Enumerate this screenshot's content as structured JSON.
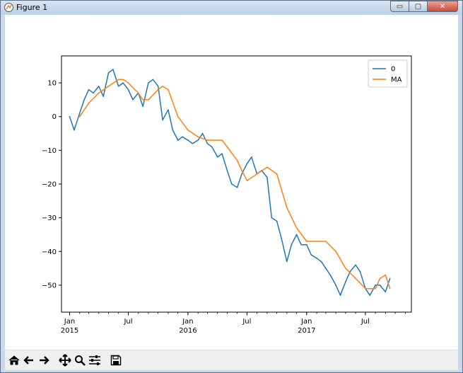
{
  "window": {
    "title": "Figure 1"
  },
  "window_controls": {
    "minimize": "▭",
    "maximize": "▢",
    "close": "✕"
  },
  "toolbar": {
    "buttons": [
      {
        "name": "home-icon",
        "glyph": "⌂"
      },
      {
        "name": "back-icon",
        "glyph": "←"
      },
      {
        "name": "forward-icon",
        "glyph": "→"
      },
      {
        "name": "pan-icon",
        "glyph": "✥"
      },
      {
        "name": "zoom-icon",
        "glyph": "🔍"
      },
      {
        "name": "configure-subplots-icon",
        "glyph": "☰"
      },
      {
        "name": "save-icon",
        "glyph": "💾"
      }
    ]
  },
  "chart_data": {
    "type": "line",
    "title": "",
    "xlabel": "",
    "ylabel": "",
    "ylim": [
      -58,
      18
    ],
    "xlim": [
      "2014-12-07",
      "2017-11-20"
    ],
    "y_ticks": [
      10,
      0,
      -10,
      -20,
      -30,
      -40,
      -50
    ],
    "y_tick_labels": [
      "10",
      "0",
      "−10",
      "−20",
      "−30",
      "−40",
      "−50"
    ],
    "x_major_ticks": [
      {
        "date": "2015-01-01",
        "label": "Jan",
        "sublabel": "2015"
      },
      {
        "date": "2015-07-01",
        "label": "Jul",
        "sublabel": ""
      },
      {
        "date": "2016-01-01",
        "label": "Jan",
        "sublabel": "2016"
      },
      {
        "date": "2016-07-01",
        "label": "Jul",
        "sublabel": ""
      },
      {
        "date": "2017-01-01",
        "label": "Jan",
        "sublabel": "2017"
      },
      {
        "date": "2017-07-01",
        "label": "Jul",
        "sublabel": ""
      }
    ],
    "legend": {
      "placement": "top-right",
      "entries": [
        "0",
        "MA"
      ]
    },
    "grid": false,
    "series": [
      {
        "name": "0",
        "color": "#1f77b4",
        "x": [
          "2015-01-01",
          "2015-01-15",
          "2015-02-01",
          "2015-02-15",
          "2015-03-01",
          "2015-03-15",
          "2015-04-01",
          "2015-04-15",
          "2015-05-01",
          "2015-05-15",
          "2015-06-01",
          "2015-06-15",
          "2015-07-01",
          "2015-07-15",
          "2015-08-01",
          "2015-08-15",
          "2015-09-01",
          "2015-09-15",
          "2015-10-01",
          "2015-10-15",
          "2015-11-01",
          "2015-11-15",
          "2015-12-01",
          "2015-12-15",
          "2016-01-01",
          "2016-01-15",
          "2016-02-01",
          "2016-02-15",
          "2016-03-01",
          "2016-03-15",
          "2016-04-01",
          "2016-04-15",
          "2016-05-01",
          "2016-05-15",
          "2016-06-01",
          "2016-06-15",
          "2016-07-01",
          "2016-07-15",
          "2016-08-01",
          "2016-08-15",
          "2016-09-01",
          "2016-09-15",
          "2016-10-01",
          "2016-10-15",
          "2016-11-01",
          "2016-11-15",
          "2016-12-01",
          "2016-12-15",
          "2017-01-01",
          "2017-01-15",
          "2017-02-01",
          "2017-02-15",
          "2017-03-01",
          "2017-03-15",
          "2017-04-01",
          "2017-04-15",
          "2017-05-01",
          "2017-05-15",
          "2017-06-01",
          "2017-06-15",
          "2017-07-01",
          "2017-07-15",
          "2017-08-01",
          "2017-08-15",
          "2017-09-01",
          "2017-09-15"
        ],
        "values": [
          0,
          -4,
          1,
          5,
          8,
          7,
          9,
          6,
          13,
          14,
          9,
          10,
          8,
          5,
          7,
          3,
          10,
          11,
          9,
          -1,
          2,
          -4,
          -7,
          -6,
          -7,
          -8,
          -7,
          -5,
          -8,
          -9,
          -12,
          -11,
          -16,
          -20,
          -21,
          -17,
          -14,
          -12,
          -17,
          -16,
          -18,
          -30,
          -31,
          -36,
          -43,
          -38,
          -35,
          -38,
          -38,
          -41,
          -42,
          -43,
          -45,
          -47,
          -50,
          -53,
          -49,
          -46,
          -44,
          -46,
          -51,
          -53,
          -50,
          -50,
          -52,
          -48
        ]
      },
      {
        "name": "MA",
        "color": "#ff7f0e",
        "x": [
          "2015-02-01",
          "2015-03-01",
          "2015-04-01",
          "2015-05-01",
          "2015-06-01",
          "2015-06-15",
          "2015-07-01",
          "2015-08-01",
          "2015-08-15",
          "2015-09-01",
          "2015-10-01",
          "2015-10-15",
          "2015-11-01",
          "2015-12-01",
          "2016-01-01",
          "2016-02-01",
          "2016-03-01",
          "2016-04-01",
          "2016-04-15",
          "2016-05-01",
          "2016-06-01",
          "2016-06-15",
          "2016-07-01",
          "2016-08-01",
          "2016-09-01",
          "2016-10-01",
          "2016-11-01",
          "2016-12-01",
          "2017-01-01",
          "2017-02-01",
          "2017-03-01",
          "2017-04-01",
          "2017-05-01",
          "2017-06-01",
          "2017-07-01",
          "2017-08-01",
          "2017-08-15",
          "2017-09-01",
          "2017-09-15"
        ],
        "values": [
          0,
          4,
          7,
          9,
          11,
          11,
          10,
          7,
          5,
          5,
          8,
          9,
          8,
          0,
          -4,
          -6,
          -7,
          -7,
          -7,
          -9,
          -13,
          -16,
          -19,
          -17,
          -15,
          -17,
          -27,
          -33,
          -37,
          -37,
          -37,
          -40,
          -45,
          -48,
          -51,
          -51,
          -48,
          -47,
          -51
        ]
      }
    ]
  }
}
